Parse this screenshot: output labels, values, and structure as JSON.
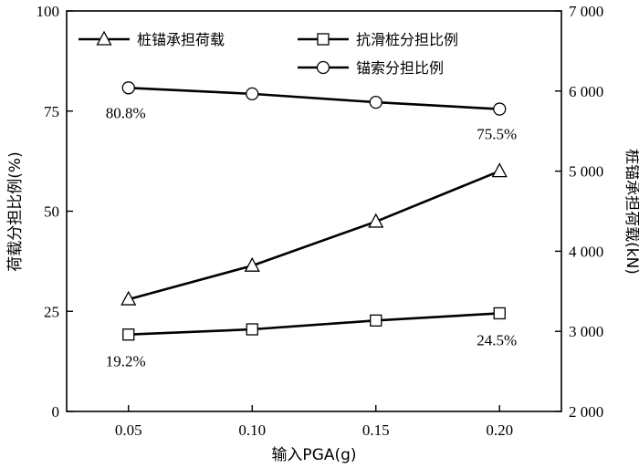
{
  "chart_data": {
    "type": "line",
    "title": "",
    "x": [
      0.05,
      0.1,
      0.15,
      0.2
    ],
    "x_ticks": [
      "0.05",
      "0.10",
      "0.15",
      "0.20"
    ],
    "xlim": [
      0.025,
      0.225
    ],
    "xlabel": "输入PGA(g)",
    "ylabel": "荷载分担比例(%)",
    "ylim": [
      0,
      100
    ],
    "y_ticks": [
      "0",
      "25",
      "50",
      "75",
      "100"
    ],
    "y2label": "桩锚承担荷载(kN)",
    "y2lim": [
      2000,
      7000
    ],
    "y2_ticks": [
      "2 000",
      "3 000",
      "4 000",
      "5 000",
      "6 000",
      "7 000"
    ],
    "grid": false,
    "legend_position": "top",
    "series": [
      {
        "name": "桩锚承担荷载",
        "axis": "right",
        "marker": "triangle",
        "values": [
          3400,
          3820,
          4370,
          5000
        ]
      },
      {
        "name": "抗滑桩分担比例",
        "axis": "left",
        "marker": "square",
        "values": [
          19.2,
          20.5,
          22.7,
          24.5
        ]
      },
      {
        "name": "锚索分担比例",
        "axis": "left",
        "marker": "circle",
        "values": [
          80.8,
          79.3,
          77.2,
          75.5
        ]
      }
    ],
    "annotations": [
      {
        "text": "80.8%",
        "series": 2,
        "point": 0
      },
      {
        "text": "75.5%",
        "series": 2,
        "point": 3
      },
      {
        "text": "19.2%",
        "series": 1,
        "point": 0
      },
      {
        "text": "24.5%",
        "series": 1,
        "point": 3
      }
    ]
  }
}
